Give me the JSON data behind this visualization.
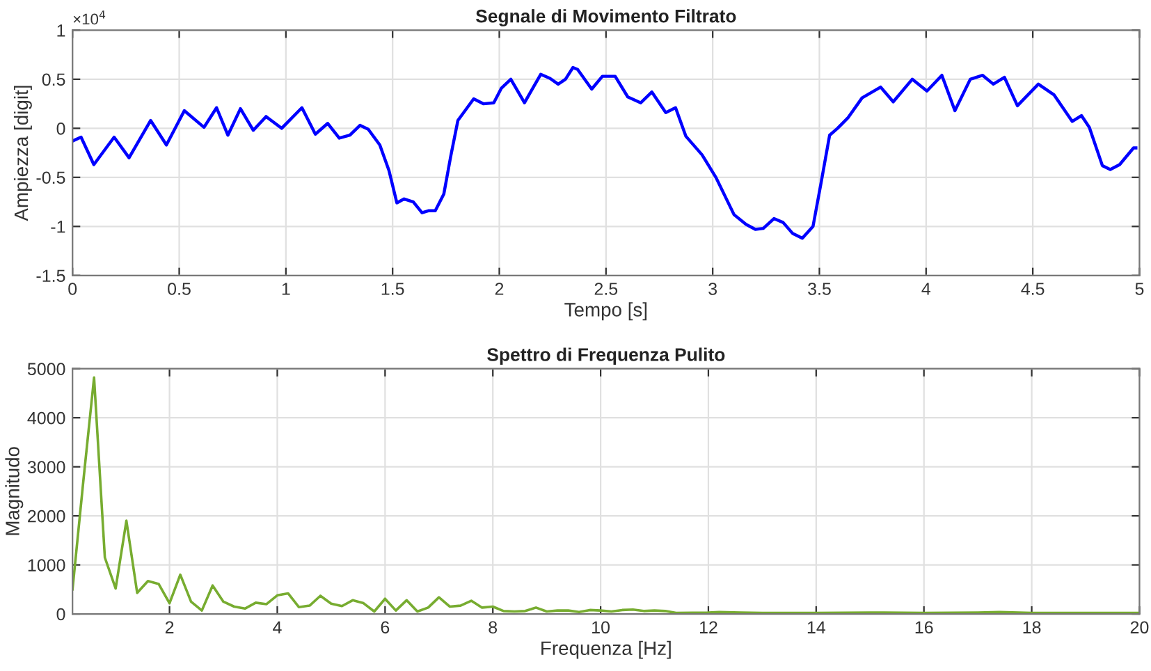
{
  "chart_data": [
    {
      "type": "line",
      "title": "Segnale di Movimento Filtrato",
      "xlabel": "Tempo [s]",
      "ylabel": "Ampiezza [digit]",
      "annotations": [
        "×10$^{4}$"
      ],
      "xlim": [
        0,
        5
      ],
      "xticks": [
        0,
        0.5,
        1,
        1.5,
        2,
        2.5,
        3,
        3.5,
        4,
        4.5,
        5
      ],
      "ylim": [
        -1.5,
        1
      ],
      "yticks": [
        -1.5,
        -1,
        -0.5,
        0,
        0.5,
        1
      ],
      "grid": true,
      "series": [
        {
          "color": "#0000ff",
          "x": [
            0,
            0.04,
            0.1,
            0.195,
            0.265,
            0.366,
            0.44,
            0.524,
            0.616,
            0.675,
            0.728,
            0.787,
            0.847,
            0.907,
            0.98,
            1.075,
            1.138,
            1.196,
            1.25,
            1.3,
            1.347,
            1.386,
            1.44,
            1.483,
            1.52,
            1.554,
            1.597,
            1.638,
            1.67,
            1.7,
            1.74,
            1.772,
            1.806,
            1.88,
            1.925,
            1.974,
            2.01,
            2.054,
            2.118,
            2.194,
            2.237,
            2.276,
            2.31,
            2.345,
            2.367,
            2.433,
            2.483,
            2.543,
            2.602,
            2.663,
            2.715,
            2.78,
            2.826,
            2.874,
            2.95,
            3.015,
            3.1,
            3.157,
            3.2,
            3.237,
            3.287,
            3.33,
            3.374,
            3.42,
            3.47,
            3.51,
            3.548,
            3.585,
            3.635,
            3.7,
            3.787,
            3.846,
            3.935,
            4.004,
            4.074,
            4.135,
            4.207,
            4.265,
            4.315,
            4.367,
            4.428,
            4.526,
            4.6,
            4.685,
            4.728,
            4.765,
            4.826,
            4.863,
            4.907,
            4.972,
            4.983
          ],
          "values": [
            -0.13,
            -0.09,
            -0.37,
            -0.09,
            -0.3,
            0.08,
            -0.17,
            0.18,
            0.01,
            0.21,
            -0.07,
            0.2,
            -0.02,
            0.12,
            0.0,
            0.21,
            -0.06,
            0.05,
            -0.1,
            -0.07,
            0.03,
            -0.01,
            -0.17,
            -0.43,
            -0.76,
            -0.72,
            -0.75,
            -0.86,
            -0.84,
            -0.84,
            -0.67,
            -0.29,
            0.08,
            0.3,
            0.25,
            0.26,
            0.41,
            0.5,
            0.26,
            0.55,
            0.51,
            0.45,
            0.5,
            0.62,
            0.6,
            0.4,
            0.53,
            0.53,
            0.32,
            0.26,
            0.37,
            0.16,
            0.21,
            -0.08,
            -0.27,
            -0.5,
            -0.88,
            -0.98,
            -1.03,
            -1.02,
            -0.92,
            -0.96,
            -1.07,
            -1.12,
            -1.0,
            -0.53,
            -0.07,
            0.0,
            0.11,
            0.31,
            0.42,
            0.27,
            0.5,
            0.38,
            0.54,
            0.18,
            0.5,
            0.54,
            0.45,
            0.52,
            0.23,
            0.45,
            0.34,
            0.07,
            0.13,
            0.01,
            -0.38,
            -0.42,
            -0.37,
            -0.2,
            -0.2
          ]
        }
      ]
    },
    {
      "type": "line",
      "title": "Spettro di Frequenza Pulito",
      "xlabel": "Frequenza [Hz]",
      "ylabel": "Magnitudo",
      "xlim": [
        0.2,
        20
      ],
      "xticks": [
        2,
        4,
        6,
        8,
        10,
        12,
        14,
        16,
        18,
        20
      ],
      "ylim": [
        0,
        5000
      ],
      "yticks": [
        0,
        1000,
        2000,
        3000,
        4000,
        5000
      ],
      "grid": true,
      "series": [
        {
          "color": "#77ac30",
          "x": [
            0.2,
            0.4,
            0.6,
            0.8,
            1.0,
            1.2,
            1.4,
            1.6,
            1.8,
            2.0,
            2.2,
            2.4,
            2.6,
            2.8,
            3.0,
            3.2,
            3.4,
            3.6,
            3.8,
            4.0,
            4.2,
            4.4,
            4.6,
            4.8,
            5.0,
            5.2,
            5.4,
            5.6,
            5.8,
            6.0,
            6.2,
            6.4,
            6.6,
            6.8,
            7.0,
            7.2,
            7.4,
            7.6,
            7.8,
            8.0,
            8.2,
            8.4,
            8.6,
            8.8,
            9.0,
            9.2,
            9.4,
            9.6,
            9.8,
            10.0,
            10.2,
            10.4,
            10.6,
            10.8,
            11.0,
            11.2,
            11.4,
            12.0,
            12.2,
            12.6,
            13.0,
            14.0,
            15.0,
            16.0,
            17.0,
            17.4,
            18.0,
            19.0,
            20.0
          ],
          "values": [
            500,
            2700,
            4820,
            1150,
            520,
            1900,
            430,
            670,
            610,
            220,
            800,
            250,
            70,
            580,
            250,
            150,
            110,
            230,
            200,
            380,
            420,
            140,
            170,
            370,
            210,
            160,
            280,
            220,
            50,
            310,
            70,
            280,
            50,
            130,
            340,
            150,
            170,
            270,
            130,
            150,
            60,
            50,
            60,
            130,
            50,
            70,
            70,
            40,
            80,
            70,
            50,
            80,
            90,
            60,
            70,
            60,
            20,
            30,
            40,
            30,
            20,
            20,
            30,
            20,
            30,
            40,
            20,
            20,
            20
          ]
        }
      ]
    }
  ]
}
